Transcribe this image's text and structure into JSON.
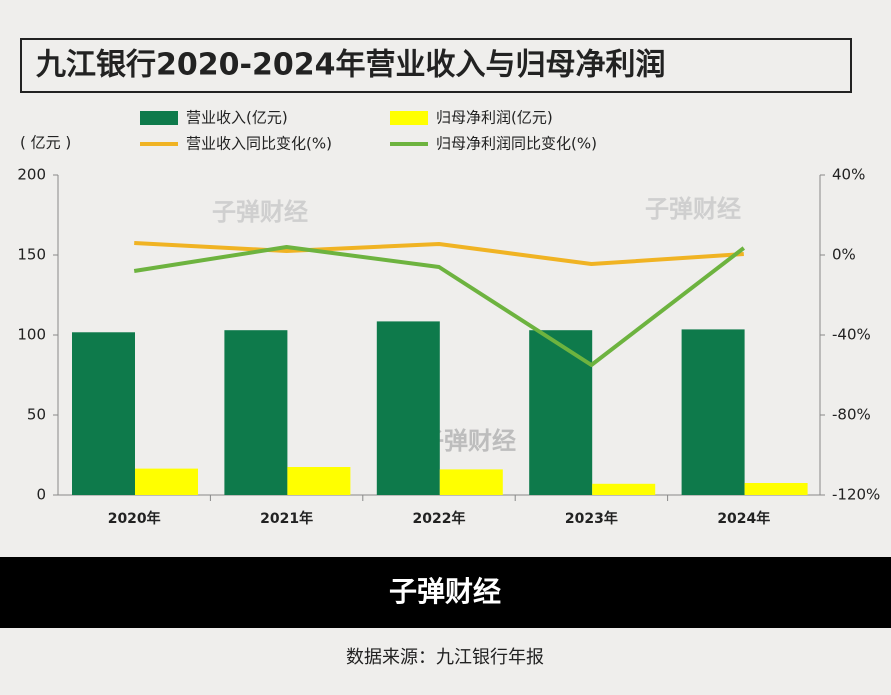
{
  "chart_data": {
    "type": "combo",
    "title": "九江银行2020-2024年营业收入与归母净利润",
    "y_label": "( 亿元 )",
    "categories": [
      "2020年",
      "2021年",
      "2022年",
      "2023年",
      "2024年"
    ],
    "series": [
      {
        "name": "营业收入(亿元)",
        "type": "bar",
        "color": "#0e7a4b",
        "values": [
          101.7,
          103,
          108.5,
          103,
          103.5
        ]
      },
      {
        "name": "归母净利润(亿元)",
        "type": "bar",
        "color": "#ffff00",
        "values": [
          16.5,
          17.5,
          16,
          7,
          7.5
        ]
      },
      {
        "name": "营业收入同比变化(%)",
        "type": "line",
        "axis": "y2",
        "color": "#f0b323",
        "values": [
          6,
          2,
          5.5,
          -4.5,
          0.5
        ]
      },
      {
        "name": "归母净利润同比变化(%)",
        "type": "line",
        "axis": "y2",
        "color": "#6db33f",
        "values": [
          -8,
          4,
          -6,
          -55,
          3.5
        ]
      }
    ],
    "ylim": [
      0,
      200
    ],
    "yticks": [
      0,
      50,
      100,
      150,
      200
    ],
    "y2lim": [
      -120,
      40
    ],
    "y2ticks": [
      {
        "value": -120,
        "label": "-120%"
      },
      {
        "value": -80,
        "label": "-80%"
      },
      {
        "value": -40,
        "label": "-40%"
      },
      {
        "value": 0,
        "label": "0%"
      },
      {
        "value": 40,
        "label": "40%"
      }
    ],
    "watermarks": [
      "子弹财经",
      "子弹财经",
      "子弹财经"
    ]
  },
  "footer": {
    "brand": "子弹财经",
    "source": "数据来源：九江银行年报"
  }
}
